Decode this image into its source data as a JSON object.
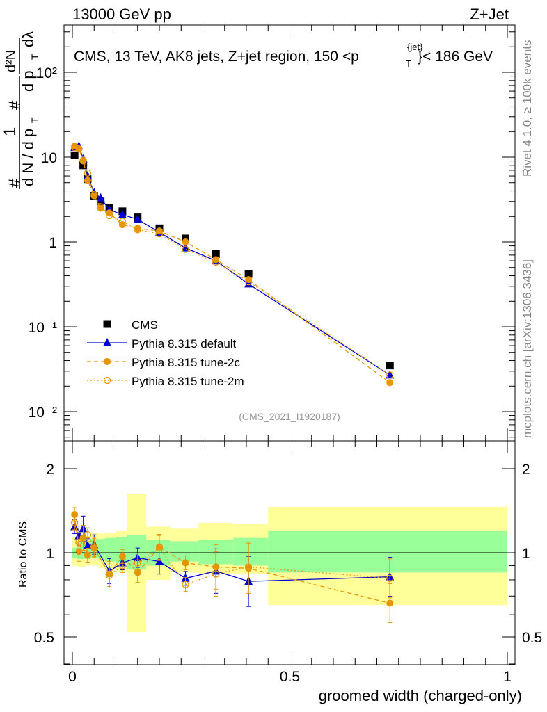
{
  "header": {
    "left": "13000 GeV pp",
    "right": "Z+Jet"
  },
  "side_labels": {
    "rivet": "Rivet 4.1.0, ≥ 100k events",
    "mcplots": "mcplots.cern.ch [arXiv:1306.3436]"
  },
  "upper_ylabel": {
    "hash_top": "#",
    "numerator": "1",
    "hash_mid": "#",
    "d2N": "d²N",
    "denominator_main": "d N / d p",
    "sub_T": "T",
    "denominator_right": "d p",
    "dlambda": "dλ"
  },
  "main_title": {
    "text": "CMS, 13 TeV, AK8 jets, Z+jet region, 150 <p",
    "sup": "{jet}",
    "sub": "T",
    "text_end": "}< 186 GeV"
  },
  "watermark": "(CMS_2021_I1920187)",
  "upper_ticks": [
    "10⁻²",
    "10⁻¹",
    "1",
    "10",
    "10²"
  ],
  "lower_ticks": [
    "0.5",
    "1",
    "2"
  ],
  "x_ticks": [
    "0",
    "0.5",
    "1"
  ],
  "ratio_ylabel": "Ratio to CMS",
  "xlabel": "groomed width (charged-only)",
  "colors": {
    "cms": "#000000",
    "default": "#0000cc",
    "tune2c": "#e69500",
    "tune2m": "#e69500",
    "band_inner": "#99ff99",
    "band_outer": "#ffff99"
  },
  "chart_data": {
    "type": "scatter",
    "xlabel": "groomed width (charged-only)",
    "ylabel": "1/dN/dpT dN/dpT dλ",
    "xlim": [
      0,
      1
    ],
    "upper": {
      "yscale": "log",
      "ylim": [
        0.005,
        400
      ],
      "legend_position": "left-middle",
      "series": [
        {
          "name": "CMS",
          "style": "square",
          "color": "#000000",
          "x": [
            0.005,
            0.025,
            0.035,
            0.05,
            0.065,
            0.085,
            0.115,
            0.15,
            0.2,
            0.26,
            0.33,
            0.405,
            0.73
          ],
          "y": [
            10.5,
            8.0,
            5.5,
            3.5,
            3.0,
            2.5,
            2.3,
            1.95,
            1.45,
            1.1,
            0.72,
            0.42,
            0.035
          ]
        },
        {
          "name": "Pythia 8.315 default",
          "style": "triangle-line",
          "color": "#0000cc",
          "x": [
            0.005,
            0.015,
            0.025,
            0.035,
            0.05,
            0.065,
            0.085,
            0.115,
            0.15,
            0.2,
            0.26,
            0.33,
            0.405,
            0.73
          ],
          "y": [
            13.0,
            13.5,
            9.5,
            6.0,
            3.8,
            3.3,
            2.4,
            2.1,
            1.85,
            1.3,
            0.85,
            0.6,
            0.32,
            0.027
          ]
        },
        {
          "name": "Pythia 8.315 tune-2c",
          "style": "circle-dashed",
          "color": "#e69500",
          "x": [
            0.005,
            0.015,
            0.025,
            0.035,
            0.05,
            0.065,
            0.085,
            0.115,
            0.15,
            0.2,
            0.26,
            0.33,
            0.405,
            0.73
          ],
          "y": [
            13.5,
            12.5,
            9.0,
            5.3,
            3.5,
            2.5,
            2.2,
            1.6,
            1.45,
            1.35,
            1.0,
            0.62,
            0.36,
            0.022
          ]
        },
        {
          "name": "Pythia 8.315 tune-2m",
          "style": "open-circle-dotted",
          "color": "#e69500",
          "x": [
            0.005,
            0.015,
            0.025,
            0.035,
            0.05,
            0.065,
            0.085,
            0.115,
            0.15,
            0.2,
            0.26,
            0.33,
            0.405,
            0.73
          ],
          "y": [
            13.0,
            12.5,
            9.2,
            6.5,
            3.6,
            2.6,
            2.05,
            1.75,
            1.4,
            1.25,
            0.82,
            0.58,
            0.34,
            0.027
          ]
        }
      ]
    },
    "ratio": {
      "yscale": "log",
      "ylim": [
        0.4,
        2.5
      ],
      "ylabel": "Ratio to CMS",
      "bands": {
        "x_edges": [
          0.0,
          0.01,
          0.02,
          0.03,
          0.04,
          0.06,
          0.075,
          0.1,
          0.125,
          0.17,
          0.225,
          0.29,
          0.37,
          0.45,
          1.0
        ],
        "inner_lo": [
          0.96,
          0.95,
          0.95,
          0.95,
          0.96,
          0.94,
          0.93,
          0.92,
          0.87,
          0.9,
          0.93,
          0.91,
          0.9,
          0.85
        ],
        "inner_hi": [
          1.04,
          1.1,
          1.1,
          1.1,
          1.12,
          1.12,
          1.13,
          1.14,
          1.16,
          1.11,
          1.1,
          1.11,
          1.13,
          1.2
        ],
        "outer_lo": [
          0.9,
          0.89,
          0.89,
          0.9,
          0.9,
          0.88,
          0.87,
          0.85,
          0.52,
          0.8,
          0.85,
          0.84,
          0.84,
          0.65
        ],
        "outer_hi": [
          1.14,
          1.16,
          1.15,
          1.15,
          1.18,
          1.17,
          1.18,
          1.2,
          1.62,
          1.24,
          1.22,
          1.28,
          1.27,
          1.46
        ]
      },
      "series": [
        {
          "name": "Pythia 8.315 default",
          "color": "#0000cc",
          "x": [
            0.005,
            0.015,
            0.025,
            0.035,
            0.05,
            0.085,
            0.115,
            0.15,
            0.2,
            0.26,
            0.33,
            0.405,
            0.73
          ],
          "y": [
            1.24,
            1.15,
            1.22,
            1.06,
            1.07,
            0.86,
            0.92,
            0.96,
            0.93,
            0.81,
            0.86,
            0.79,
            0.82
          ]
        },
        {
          "name": "Pythia 8.315 tune-2c",
          "color": "#e69500",
          "x": [
            0.005,
            0.015,
            0.025,
            0.035,
            0.05,
            0.085,
            0.115,
            0.15,
            0.2,
            0.26,
            0.33,
            0.405,
            0.73
          ],
          "y": [
            1.37,
            1.01,
            1.13,
            0.98,
            1.04,
            0.84,
            0.97,
            0.85,
            1.05,
            0.92,
            0.89,
            0.88,
            0.66
          ]
        },
        {
          "name": "Pythia 8.315 tune-2m",
          "color": "#e69500",
          "x": [
            0.005,
            0.015,
            0.025,
            0.035,
            0.05,
            0.085,
            0.115,
            0.15,
            0.2,
            0.26,
            0.33,
            0.405,
            0.73
          ],
          "y": [
            1.28,
            1.09,
            1.13,
            1.16,
            1.05,
            0.83,
            0.9,
            0.92,
            1.04,
            0.77,
            0.84,
            0.89,
            0.81
          ]
        }
      ]
    }
  }
}
